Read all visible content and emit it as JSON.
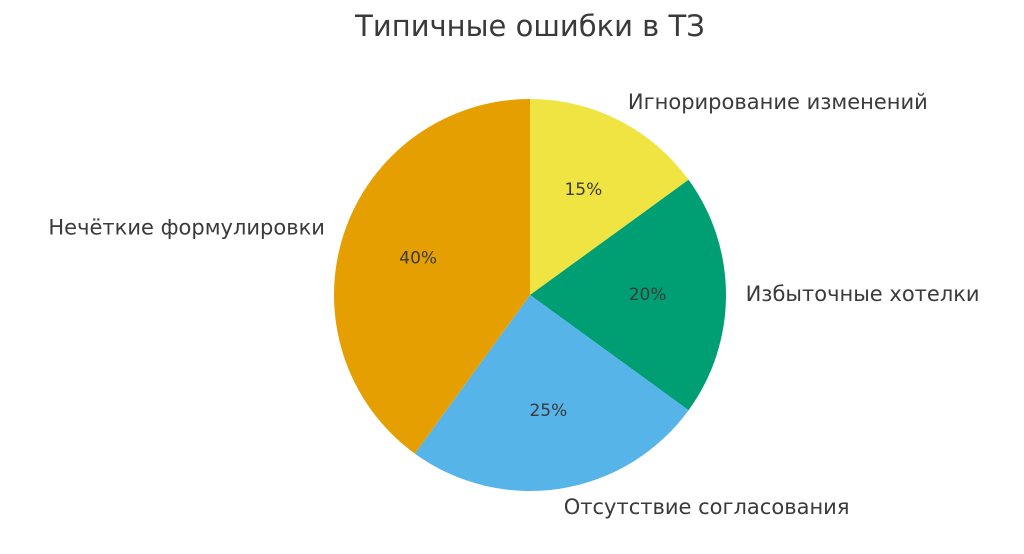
{
  "chart_data": {
    "type": "pie",
    "title": "Типичные ошибки в ТЗ",
    "categories": [
      "Игнорирование изменений",
      "Избыточные хотелки",
      "Отсутствие согласования",
      "Нечёткие формулировки"
    ],
    "values": [
      15,
      20,
      25,
      40
    ],
    "value_labels": [
      "15%",
      "20%",
      "25%",
      "40%"
    ],
    "colors": [
      "#f0e442",
      "#009e73",
      "#56b4e9",
      "#e69f00"
    ]
  }
}
